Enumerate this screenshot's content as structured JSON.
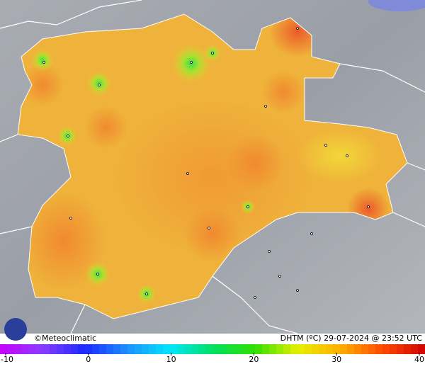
{
  "credit": "©Meteoclimatic",
  "caption": "DHTM (ºC)  29-07-2024 @ 23:52 UTC",
  "scale": {
    "ticks": [
      -10,
      0,
      10,
      20,
      30,
      40
    ]
  }
}
